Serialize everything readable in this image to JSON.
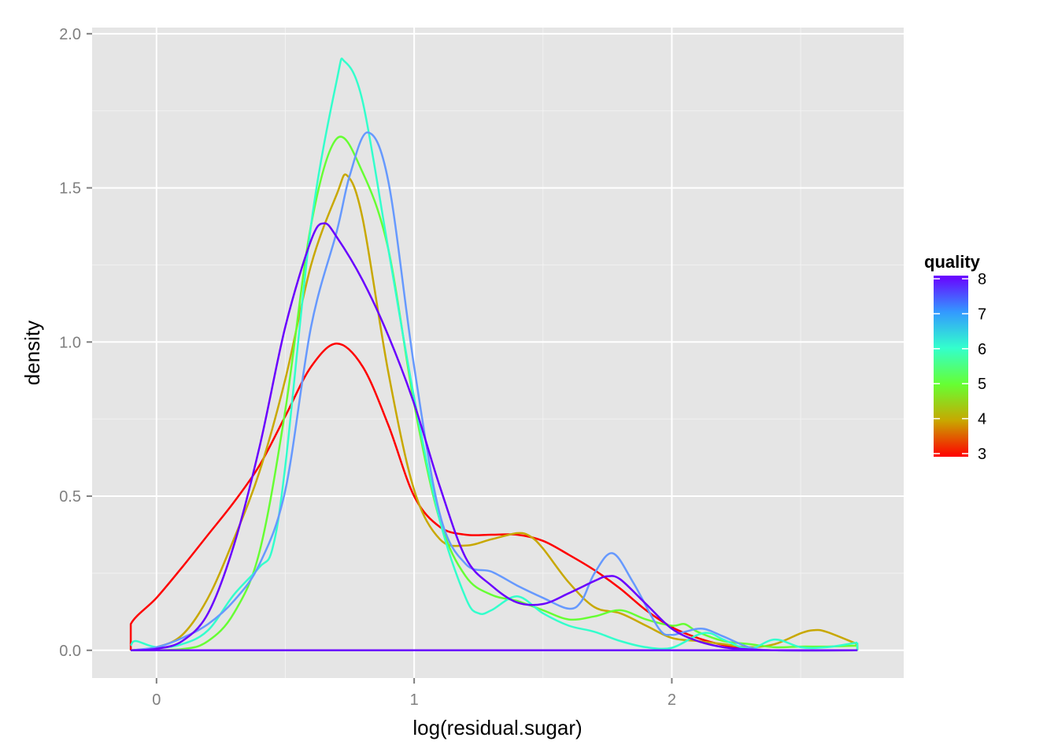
{
  "chart_data": {
    "type": "line",
    "title": "",
    "xlabel": "log(residual.sugar)",
    "ylabel": "density",
    "xlim": [
      -0.25,
      2.9
    ],
    "ylim": [
      -0.09,
      2.02
    ],
    "x_ticks": [
      0,
      1,
      2
    ],
    "x_tick_labels": [
      "0",
      "1",
      "2"
    ],
    "y_ticks": [
      0.0,
      0.5,
      1.0,
      1.5,
      2.0
    ],
    "y_tick_labels": [
      "0.0",
      "0.5",
      "1.0",
      "1.5",
      "2.0"
    ],
    "grid": true,
    "legend": {
      "title": "quality",
      "position": "right",
      "kind": "colorbar",
      "range": [
        3,
        8
      ],
      "labels": [
        "8",
        "7",
        "6",
        "5",
        "4",
        "3"
      ],
      "label_values": [
        8,
        7,
        6,
        5,
        4,
        3
      ],
      "gradient_colors": [
        "#ff0000",
        "#c8a800",
        "#66ff33",
        "#33ffcc",
        "#3399ff",
        "#6a00ff"
      ]
    },
    "series": [
      {
        "quality": 3,
        "color": "#ff0000",
        "points": [
          [
            -0.1,
            0.0
          ],
          [
            -0.1,
            0.085
          ],
          [
            0.0,
            0.17
          ],
          [
            0.1,
            0.27
          ],
          [
            0.2,
            0.375
          ],
          [
            0.3,
            0.48
          ],
          [
            0.4,
            0.6
          ],
          [
            0.5,
            0.76
          ],
          [
            0.6,
            0.92
          ],
          [
            0.7,
            0.995
          ],
          [
            0.8,
            0.92
          ],
          [
            0.9,
            0.73
          ],
          [
            1.0,
            0.5
          ],
          [
            1.1,
            0.4
          ],
          [
            1.2,
            0.375
          ],
          [
            1.3,
            0.375
          ],
          [
            1.4,
            0.375
          ],
          [
            1.5,
            0.355
          ],
          [
            1.6,
            0.31
          ],
          [
            1.7,
            0.26
          ],
          [
            1.8,
            0.2
          ],
          [
            1.9,
            0.13
          ],
          [
            2.0,
            0.075
          ],
          [
            2.1,
            0.04
          ],
          [
            2.2,
            0.017
          ],
          [
            2.3,
            0.005
          ],
          [
            2.4,
            0.0
          ],
          [
            2.72,
            0.0
          ]
        ]
      },
      {
        "quality": 4,
        "color": "#c8a800",
        "points": [
          [
            -0.1,
            0.0
          ],
          [
            0.0,
            0.01
          ],
          [
            0.1,
            0.05
          ],
          [
            0.2,
            0.17
          ],
          [
            0.3,
            0.36
          ],
          [
            0.4,
            0.58
          ],
          [
            0.5,
            0.88
          ],
          [
            0.6,
            1.25
          ],
          [
            0.7,
            1.48
          ],
          [
            0.74,
            1.54
          ],
          [
            0.8,
            1.4
          ],
          [
            0.9,
            0.9
          ],
          [
            1.0,
            0.52
          ],
          [
            1.1,
            0.36
          ],
          [
            1.2,
            0.34
          ],
          [
            1.3,
            0.36
          ],
          [
            1.4,
            0.38
          ],
          [
            1.45,
            0.37
          ],
          [
            1.5,
            0.33
          ],
          [
            1.6,
            0.22
          ],
          [
            1.7,
            0.14
          ],
          [
            1.8,
            0.12
          ],
          [
            1.9,
            0.08
          ],
          [
            2.0,
            0.04
          ],
          [
            2.1,
            0.03
          ],
          [
            2.2,
            0.02
          ],
          [
            2.3,
            0.01
          ],
          [
            2.4,
            0.02
          ],
          [
            2.5,
            0.055
          ],
          [
            2.55,
            0.065
          ],
          [
            2.6,
            0.06
          ],
          [
            2.72,
            0.02
          ]
        ]
      },
      {
        "quality": 5,
        "color": "#66ff33",
        "points": [
          [
            -0.1,
            0.0
          ],
          [
            0.1,
            0.004
          ],
          [
            0.2,
            0.03
          ],
          [
            0.3,
            0.12
          ],
          [
            0.4,
            0.32
          ],
          [
            0.5,
            0.78
          ],
          [
            0.6,
            1.38
          ],
          [
            0.7,
            1.66
          ],
          [
            0.8,
            1.55
          ],
          [
            0.9,
            1.3
          ],
          [
            1.0,
            0.8
          ],
          [
            1.1,
            0.42
          ],
          [
            1.2,
            0.24
          ],
          [
            1.3,
            0.18
          ],
          [
            1.4,
            0.16
          ],
          [
            1.5,
            0.13
          ],
          [
            1.6,
            0.1
          ],
          [
            1.7,
            0.11
          ],
          [
            1.8,
            0.13
          ],
          [
            1.9,
            0.1
          ],
          [
            2.0,
            0.08
          ],
          [
            2.05,
            0.085
          ],
          [
            2.1,
            0.06
          ],
          [
            2.2,
            0.03
          ],
          [
            2.3,
            0.02
          ],
          [
            2.4,
            0.01
          ],
          [
            2.5,
            0.012
          ],
          [
            2.6,
            0.012
          ],
          [
            2.72,
            0.015
          ]
        ]
      },
      {
        "quality": 6,
        "color": "#33ffcc",
        "points": [
          [
            -0.1,
            0.015
          ],
          [
            -0.08,
            0.03
          ],
          [
            0.0,
            0.01
          ],
          [
            0.1,
            0.02
          ],
          [
            0.2,
            0.065
          ],
          [
            0.3,
            0.18
          ],
          [
            0.4,
            0.27
          ],
          [
            0.45,
            0.33
          ],
          [
            0.5,
            0.6
          ],
          [
            0.6,
            1.38
          ],
          [
            0.7,
            1.85
          ],
          [
            0.73,
            1.91
          ],
          [
            0.8,
            1.78
          ],
          [
            0.9,
            1.3
          ],
          [
            1.0,
            0.82
          ],
          [
            1.1,
            0.42
          ],
          [
            1.2,
            0.17
          ],
          [
            1.25,
            0.12
          ],
          [
            1.3,
            0.13
          ],
          [
            1.4,
            0.175
          ],
          [
            1.5,
            0.12
          ],
          [
            1.6,
            0.08
          ],
          [
            1.7,
            0.06
          ],
          [
            1.8,
            0.03
          ],
          [
            1.9,
            0.01
          ],
          [
            2.0,
            0.008
          ],
          [
            2.1,
            0.05
          ],
          [
            2.15,
            0.055
          ],
          [
            2.2,
            0.035
          ],
          [
            2.3,
            0.005
          ],
          [
            2.4,
            0.035
          ],
          [
            2.5,
            0.01
          ],
          [
            2.6,
            0.01
          ],
          [
            2.72,
            0.025
          ]
        ]
      },
      {
        "quality": 7,
        "color": "#6699ff",
        "points": [
          [
            -0.1,
            0.0
          ],
          [
            0.0,
            0.01
          ],
          [
            0.1,
            0.04
          ],
          [
            0.2,
            0.085
          ],
          [
            0.3,
            0.16
          ],
          [
            0.4,
            0.28
          ],
          [
            0.5,
            0.52
          ],
          [
            0.6,
            1.05
          ],
          [
            0.7,
            1.36
          ],
          [
            0.75,
            1.54
          ],
          [
            0.82,
            1.68
          ],
          [
            0.9,
            1.52
          ],
          [
            1.0,
            0.92
          ],
          [
            1.1,
            0.44
          ],
          [
            1.2,
            0.28
          ],
          [
            1.3,
            0.255
          ],
          [
            1.4,
            0.21
          ],
          [
            1.5,
            0.17
          ],
          [
            1.6,
            0.135
          ],
          [
            1.65,
            0.16
          ],
          [
            1.7,
            0.25
          ],
          [
            1.77,
            0.315
          ],
          [
            1.85,
            0.22
          ],
          [
            1.95,
            0.07
          ],
          [
            2.0,
            0.05
          ],
          [
            2.05,
            0.06
          ],
          [
            2.12,
            0.07
          ],
          [
            2.2,
            0.045
          ],
          [
            2.3,
            0.01
          ],
          [
            2.4,
            0.0
          ],
          [
            2.72,
            0.0
          ]
        ]
      },
      {
        "quality": 8,
        "color": "#6a00ff",
        "points": [
          [
            -0.1,
            0.0
          ],
          [
            0.0,
            0.005
          ],
          [
            0.1,
            0.03
          ],
          [
            0.2,
            0.12
          ],
          [
            0.3,
            0.34
          ],
          [
            0.4,
            0.66
          ],
          [
            0.5,
            1.05
          ],
          [
            0.6,
            1.33
          ],
          [
            0.65,
            1.385
          ],
          [
            0.7,
            1.34
          ],
          [
            0.8,
            1.2
          ],
          [
            0.9,
            1.02
          ],
          [
            1.0,
            0.8
          ],
          [
            1.1,
            0.53
          ],
          [
            1.2,
            0.3
          ],
          [
            1.3,
            0.21
          ],
          [
            1.4,
            0.155
          ],
          [
            1.5,
            0.15
          ],
          [
            1.6,
            0.185
          ],
          [
            1.7,
            0.225
          ],
          [
            1.75,
            0.24
          ],
          [
            1.8,
            0.23
          ],
          [
            1.9,
            0.15
          ],
          [
            2.0,
            0.07
          ],
          [
            2.1,
            0.03
          ],
          [
            2.2,
            0.01
          ],
          [
            2.3,
            0.003
          ],
          [
            2.4,
            0.0
          ],
          [
            2.72,
            0.0
          ]
        ]
      }
    ]
  }
}
